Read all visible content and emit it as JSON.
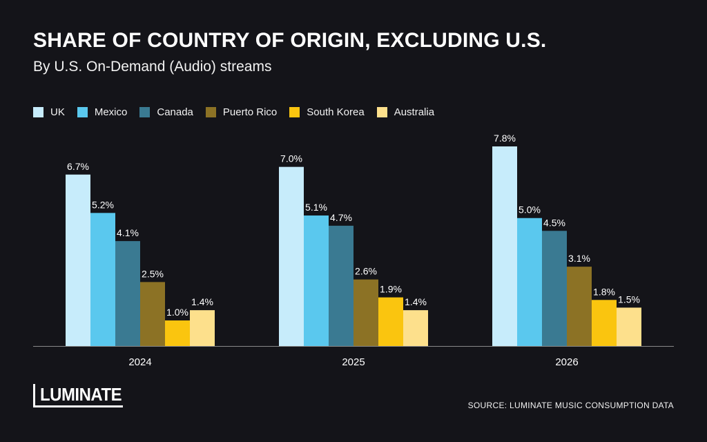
{
  "header": {
    "title": "SHARE OF COUNTRY OF ORIGIN, EXCLUDING U.S.",
    "subtitle": "By U.S. On-Demand (Audio) streams"
  },
  "footer": {
    "logo_text": "LUMINATE",
    "source": "SOURCE: LUMINATE MUSIC CONSUMPTION DATA"
  },
  "colors": {
    "background": "#141419",
    "axis": "#8a8a8a"
  },
  "chart_data": {
    "type": "bar",
    "title": "SHARE OF COUNTRY OF ORIGIN, EXCLUDING U.S.",
    "subtitle": "By U.S. On-Demand (Audio) streams",
    "categories": [
      "2024",
      "2025",
      "2026"
    ],
    "series": [
      {
        "name": "UK",
        "color": "#c7ecfb",
        "values": [
          6.7,
          7.0,
          7.8
        ],
        "labels": [
          "6.7%",
          "7.0%",
          "7.8%"
        ]
      },
      {
        "name": "Mexico",
        "color": "#5ac8ee",
        "values": [
          5.2,
          5.1,
          5.0
        ],
        "labels": [
          "5.2%",
          "5.1%",
          "5.0%"
        ]
      },
      {
        "name": "Canada",
        "color": "#3a7a92",
        "values": [
          4.1,
          4.7,
          4.5
        ],
        "labels": [
          "4.1%",
          "4.7%",
          "4.5%"
        ]
      },
      {
        "name": "Puerto Rico",
        "color": "#8c7225",
        "values": [
          2.5,
          2.6,
          3.1
        ],
        "labels": [
          "2.5%",
          "2.6%",
          "3.1%"
        ]
      },
      {
        "name": "South Korea",
        "color": "#fac50f",
        "values": [
          1.0,
          1.9,
          1.8
        ],
        "labels": [
          "1.0%",
          "1.9%",
          "1.8%"
        ]
      },
      {
        "name": "Australia",
        "color": "#fde08c",
        "values": [
          1.4,
          1.4,
          1.5
        ],
        "labels": [
          "1.4%",
          "1.4%",
          "1.5%"
        ]
      }
    ],
    "ylim": [
      0,
      8
    ],
    "grid": false,
    "legend": "top-left"
  }
}
